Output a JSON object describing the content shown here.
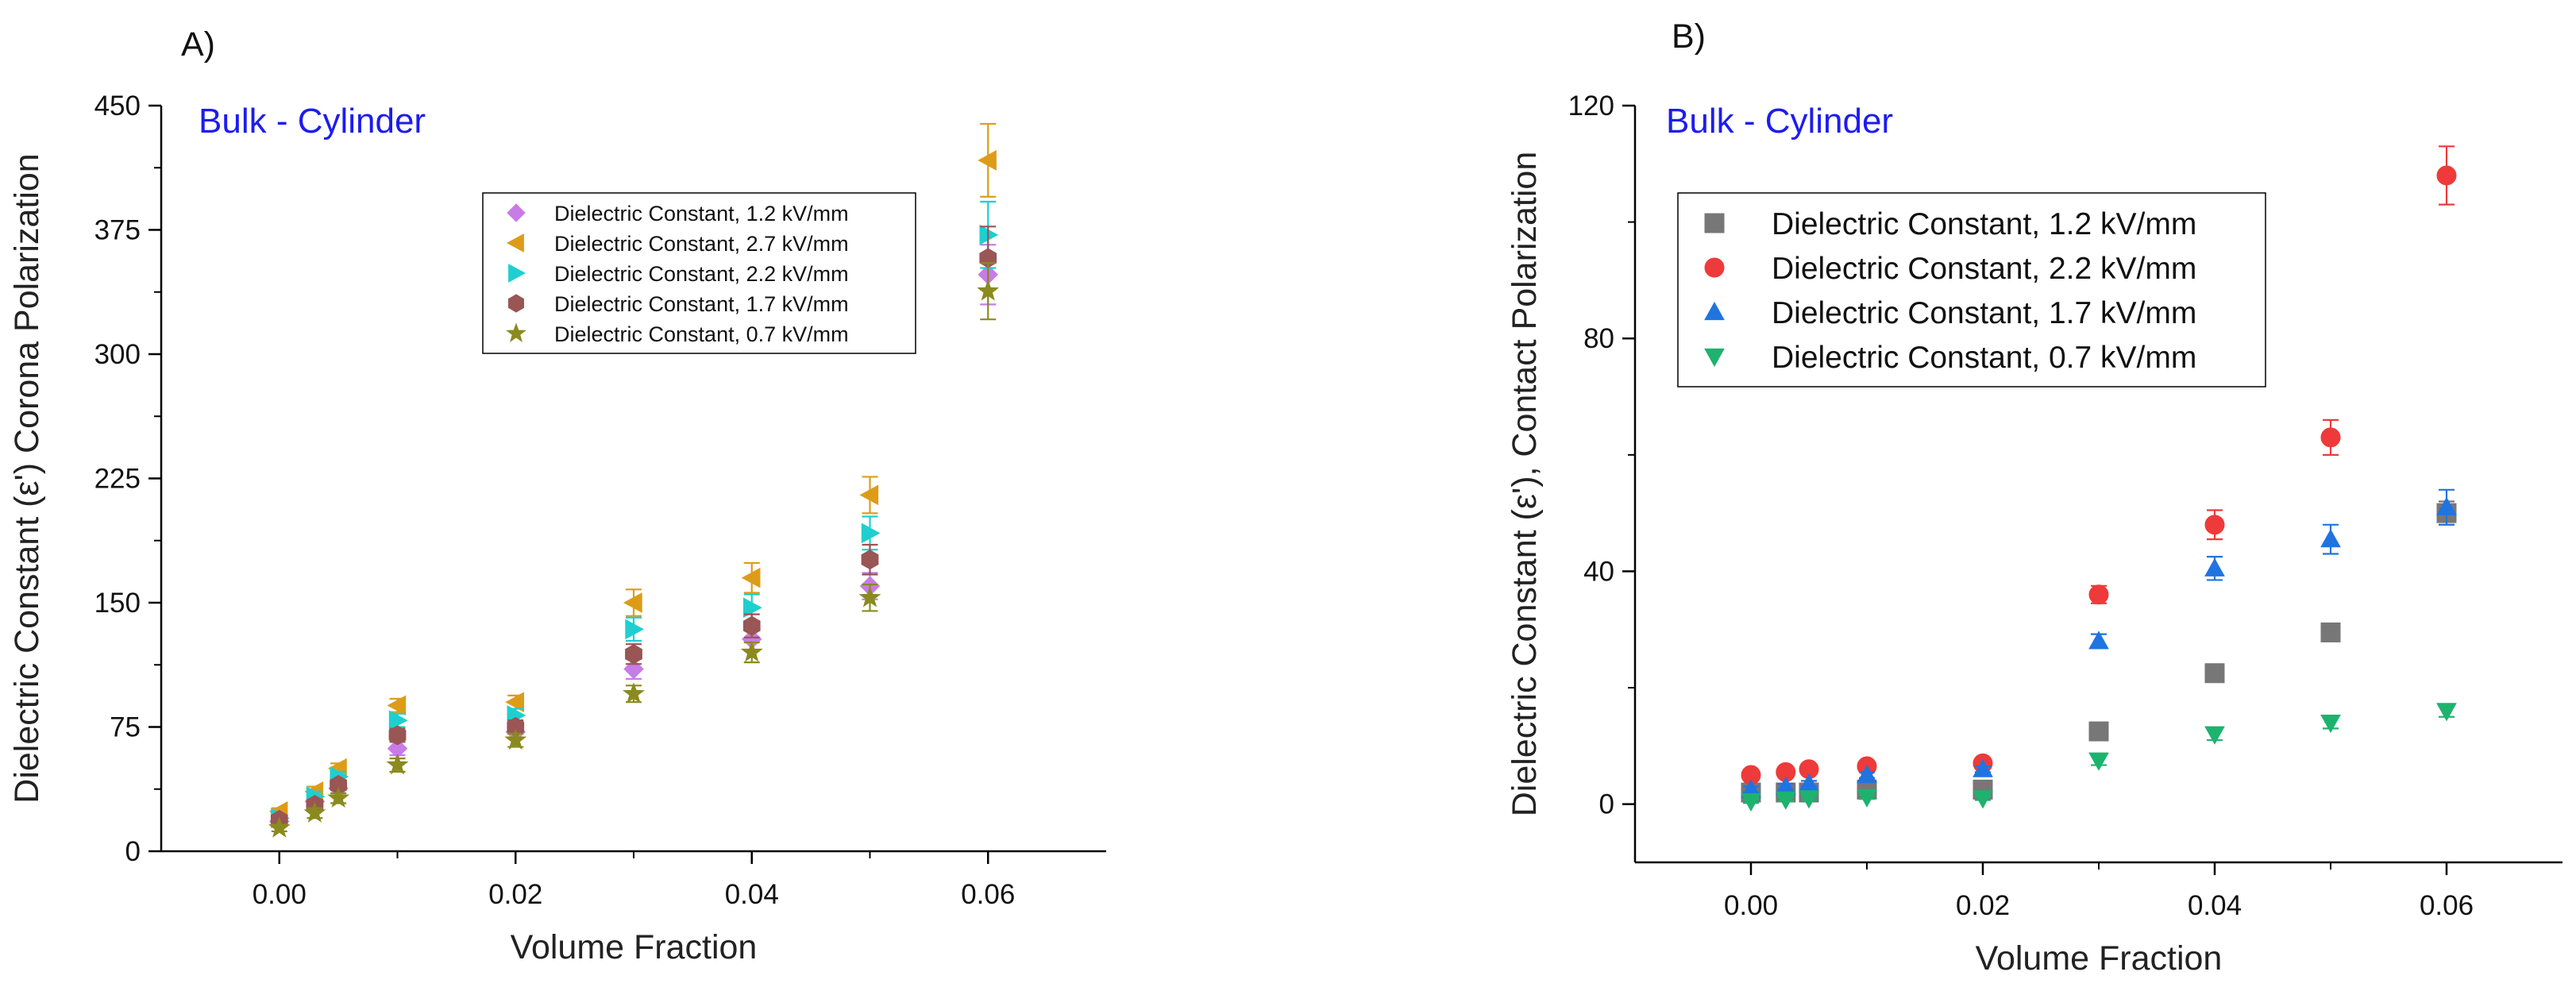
{
  "chart_data": [
    {
      "type": "scatter",
      "panel_label": "A)",
      "annotation": "Bulk - Cylinder",
      "annotation_color": "#1c1cf0",
      "xlabel": "Volume Fraction",
      "ylabel": "Dielectric Constant (ε') Corona Polarization",
      "xlim": [
        -0.01,
        0.07
      ],
      "ylim": [
        0,
        450
      ],
      "xticks": [
        0.0,
        0.02,
        0.04,
        0.06
      ],
      "xtick_labels": [
        "0.00",
        "0.02",
        "0.04",
        "0.06"
      ],
      "yticks": [
        0,
        75,
        150,
        225,
        300,
        375,
        450
      ],
      "ytick_labels": [
        "0",
        "75",
        "150",
        "225",
        "300",
        "375",
        "450"
      ],
      "legend_position": "top-right",
      "grid": false,
      "x": [
        0.0,
        0.003,
        0.005,
        0.01,
        0.02,
        0.03,
        0.04,
        0.05,
        0.06
      ],
      "series": [
        {
          "name": "Dielectric Constant,  1.2 kV/mm",
          "marker": "diamond",
          "color": "#c77ce6",
          "values": [
            18,
            30,
            38,
            62,
            72,
            110,
            128,
            160,
            348
          ],
          "errors": [
            2,
            3,
            3,
            4,
            4,
            6,
            7,
            8,
            18
          ]
        },
        {
          "name": "Dielectric Constant,  2.7 kV/mm",
          "marker": "triangle-left",
          "color": "#dd9c18",
          "values": [
            24,
            36,
            50,
            88,
            90,
            150,
            165,
            215,
            417
          ],
          "errors": [
            2,
            3,
            3,
            4,
            4,
            8,
            9,
            11,
            22
          ]
        },
        {
          "name": "Dielectric Constant,  2.2 kV/mm",
          "marker": "triangle-right",
          "color": "#1fcfcf",
          "values": [
            20,
            33,
            45,
            79,
            82,
            134,
            147,
            192,
            372
          ],
          "errors": [
            2,
            3,
            3,
            4,
            4,
            7,
            8,
            10,
            20
          ]
        },
        {
          "name": "Dielectric Constant,  1.7 kV/mm",
          "marker": "hexagon",
          "color": "#9a5555",
          "values": [
            19,
            28,
            40,
            70,
            75,
            119,
            136,
            176,
            358
          ],
          "errors": [
            2,
            3,
            3,
            4,
            4,
            6,
            7,
            9,
            19
          ]
        },
        {
          "name": "Dielectric Constant,  0.7 kV/mm",
          "marker": "star",
          "color": "#8a8a1e",
          "values": [
            14,
            23,
            32,
            52,
            67,
            95,
            120,
            153,
            338
          ],
          "errors": [
            2,
            3,
            3,
            4,
            4,
            5,
            6,
            8,
            17
          ]
        }
      ]
    },
    {
      "type": "scatter",
      "panel_label": "B)",
      "annotation": "Bulk - Cylinder",
      "annotation_color": "#1c1cf0",
      "xlabel": "Volume Fraction",
      "ylabel": "Dielectric Constant (ε'),  Contact Polarization",
      "xlim": [
        -0.01,
        0.07
      ],
      "ylim": [
        -10,
        120
      ],
      "xticks": [
        0.0,
        0.02,
        0.04,
        0.06
      ],
      "xtick_labels": [
        "0.00",
        "0.02",
        "0.04",
        "0.06"
      ],
      "yticks": [
        0,
        40,
        80,
        120
      ],
      "ytick_labels": [
        "0",
        "40",
        "80",
        "120"
      ],
      "legend_position": "top-left",
      "grid": false,
      "x": [
        0.0,
        0.003,
        0.005,
        0.01,
        0.02,
        0.03,
        0.04,
        0.05,
        0.06
      ],
      "series": [
        {
          "name": "Dielectric Constant,  1.2 kV/mm",
          "marker": "square",
          "color": "#777777",
          "values": [
            2.0,
            2.0,
            2.0,
            2.5,
            2.5,
            12.5,
            22.5,
            29.5,
            50
          ],
          "errors": [
            0.5,
            0.5,
            0.5,
            0.5,
            0.5,
            1,
            1,
            1,
            2
          ]
        },
        {
          "name": "Dielectric Constant,  2.2 kV/mm",
          "marker": "circle",
          "color": "#ee3a3a",
          "values": [
            5,
            5.5,
            6,
            6.5,
            7,
            36,
            48,
            63,
            108
          ],
          "errors": [
            0.5,
            0.5,
            0.5,
            0.5,
            0.5,
            1.5,
            2.5,
            3,
            5
          ]
        },
        {
          "name": "Dielectric Constant,  1.7 kV/mm",
          "marker": "triangle-up",
          "color": "#1f74e0",
          "values": [
            2.5,
            3.0,
            3.5,
            5.0,
            6.0,
            28,
            40.5,
            45.5,
            51
          ],
          "errors": [
            0.5,
            0.5,
            0.5,
            0.5,
            0.5,
            1.2,
            2,
            2.5,
            3
          ]
        },
        {
          "name": "Dielectric Constant,  0.7 kV/mm",
          "marker": "triangle-down",
          "color": "#1db36e",
          "values": [
            0.5,
            0.8,
            1.0,
            1.2,
            1.0,
            7.5,
            12,
            14,
            16
          ],
          "errors": [
            0.3,
            0.3,
            0.3,
            0.3,
            0.3,
            0.8,
            1,
            1,
            1
          ]
        }
      ]
    }
  ]
}
